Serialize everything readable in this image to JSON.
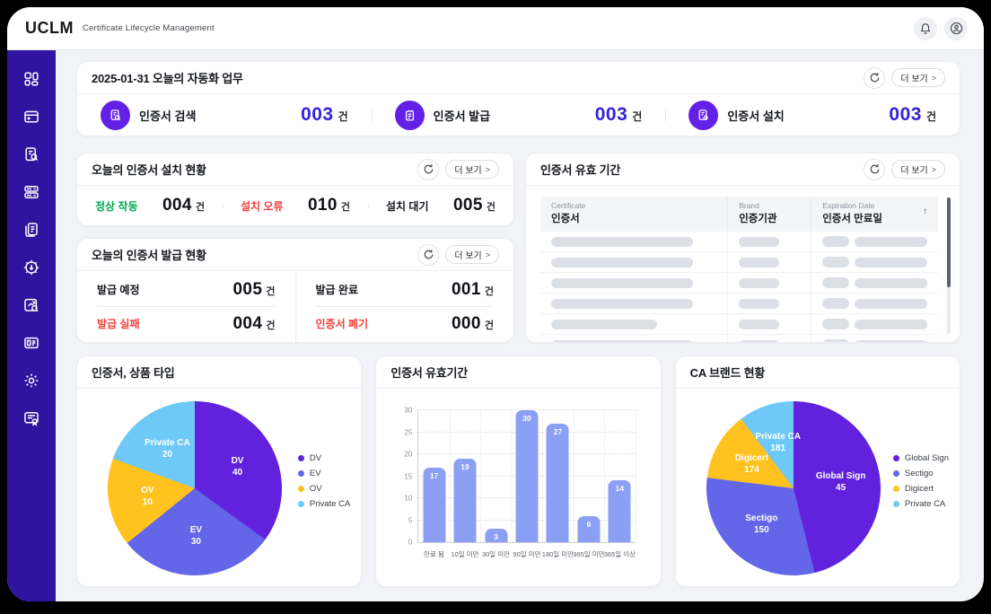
{
  "ui": {
    "more_label": "더 보기",
    "chevron": ">"
  },
  "header": {
    "logo": "UCLM",
    "subtitle": "Certificate Lifecycle Management"
  },
  "sidebar": {
    "items": [
      "dashboard",
      "calendar",
      "certificate-search",
      "server",
      "documents",
      "automation-settings",
      "monitoring-search",
      "id-card",
      "settings",
      "certificate-audit"
    ]
  },
  "automation_card": {
    "title": "2025-01-31 오늘의 자동화 업무",
    "stats": [
      {
        "icon": "certificate-search",
        "label": "인증서 검색",
        "value": "003",
        "unit": "건"
      },
      {
        "icon": "certificate-issue",
        "label": "인증서 발급",
        "value": "003",
        "unit": "건"
      },
      {
        "icon": "certificate-install",
        "label": "인증서 설치",
        "value": "003",
        "unit": "건"
      }
    ]
  },
  "install_card": {
    "title": "오늘의 인증서 설치 현황",
    "stats": [
      {
        "label": "정상 작동",
        "value": "004",
        "unit": "건",
        "label_color": "#00A84E"
      },
      {
        "label": "설치 오류",
        "value": "010",
        "unit": "건",
        "label_color": "#F5413D"
      },
      {
        "label": "설치 대기",
        "value": "005",
        "unit": "건",
        "label_color": "#15181E"
      }
    ]
  },
  "issue_card": {
    "title": "오늘의 인증서 발급 현황",
    "stats": [
      {
        "label": "발급 예정",
        "value": "005",
        "unit": "건",
        "label_color": "#15181E"
      },
      {
        "label": "발급 완료",
        "value": "001",
        "unit": "건",
        "label_color": "#15181E"
      },
      {
        "label": "발급 실패",
        "value": "004",
        "unit": "건",
        "label_color": "#F5413D"
      },
      {
        "label": "인증서 폐기",
        "value": "000",
        "unit": "건",
        "label_color": "#F5413D"
      }
    ]
  },
  "validity_card": {
    "title": "인증서 유효 기간",
    "sort_icon": "↑",
    "columns": [
      {
        "en": "Certificate",
        "ko": "인증서"
      },
      {
        "en": "Brand",
        "ko": "인증기관"
      },
      {
        "en": "Expiration Date",
        "ko": "인증서 만료일"
      }
    ],
    "skeleton_row_widths": [
      86,
      86,
      86,
      86,
      64,
      86
    ]
  },
  "chart_data": [
    {
      "type": "pie",
      "title": "인증서, 상품 타입",
      "legend_position": "right",
      "series": [
        {
          "name": "DV",
          "value": 40,
          "color": "#6221DD",
          "start_deg": 0,
          "end_deg": 126
        },
        {
          "name": "EV",
          "value": 30,
          "color": "#6366E8",
          "start_deg": 126,
          "end_deg": 231
        },
        {
          "name": "OV",
          "value": 10,
          "color": "#FFC21E",
          "start_deg": 231,
          "end_deg": 290
        },
        {
          "name": "Private CA",
          "value": 20,
          "color": "#6FC9F8",
          "start_deg": 290,
          "end_deg": 360
        }
      ]
    },
    {
      "type": "bar",
      "title": "인증서 유효기간",
      "categories": [
        "만료 됨",
        "10일 미만",
        "30일 미만",
        "90일 미만",
        "180일 미만",
        "365일 미만",
        "365일 이상"
      ],
      "values": [
        17,
        19,
        3,
        30,
        27,
        6,
        14
      ],
      "ylim": [
        0,
        30
      ],
      "yticks": [
        0,
        5,
        10,
        15,
        20,
        25,
        30
      ],
      "bar_color": "#8B9FF4",
      "grid": "dotted"
    },
    {
      "type": "pie",
      "title": "CA 브랜드 현황",
      "legend_position": "right",
      "series": [
        {
          "name": "Global Sign",
          "value": 45,
          "color": "#6221DD",
          "start_deg": 0,
          "end_deg": 166
        },
        {
          "name": "Sectigo",
          "value": 150,
          "color": "#6366E8",
          "start_deg": 166,
          "end_deg": 277
        },
        {
          "name": "Digicert",
          "value": 174,
          "color": "#FFC21E",
          "start_deg": 277,
          "end_deg": 323
        },
        {
          "name": "Private CA",
          "value": 181,
          "color": "#6FC9F8",
          "start_deg": 323,
          "end_deg": 360
        }
      ]
    }
  ],
  "colors": {
    "sidebar_bg": "#2E149E",
    "stat_icon_bg": "#6320E6",
    "stat_value": "#3323DD",
    "positive": "#00A84E",
    "negative": "#F5413D",
    "page_bg": "#F1F3F6",
    "bar": "#8B9FF4"
  }
}
